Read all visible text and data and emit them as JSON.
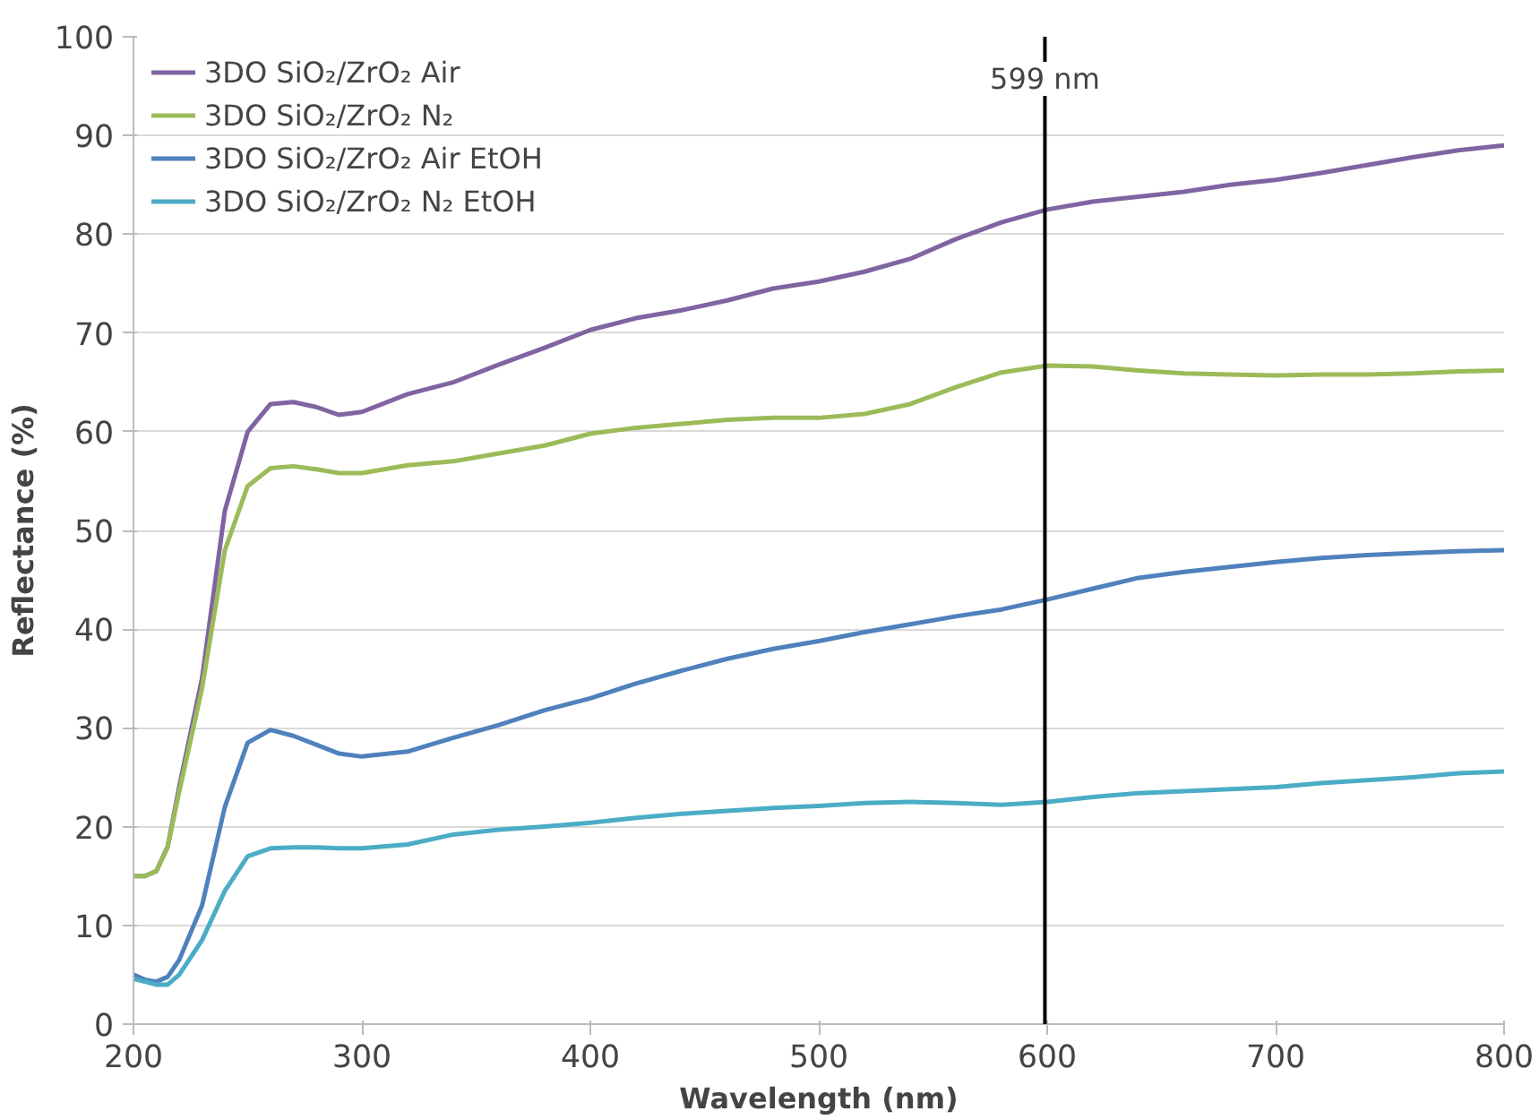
{
  "chart_data": {
    "type": "line",
    "xlabel": "Wavelength (nm)",
    "ylabel": "Reflectance (%)",
    "x": [
      200,
      205,
      210,
      215,
      220,
      230,
      240,
      250,
      260,
      270,
      280,
      290,
      300,
      320,
      340,
      360,
      380,
      400,
      420,
      440,
      460,
      480,
      500,
      520,
      540,
      560,
      580,
      600,
      620,
      640,
      660,
      680,
      700,
      720,
      740,
      760,
      780,
      800
    ],
    "series": [
      {
        "name": "3DO SiO₂/ZrO₂ Air",
        "color": "#8064a2",
        "values": [
          15,
          15,
          15.5,
          18,
          24,
          35,
          52,
          60,
          62.8,
          63,
          62.5,
          61.7,
          62,
          63.8,
          65,
          66.8,
          68.5,
          70.3,
          71.5,
          72.3,
          73.3,
          74.5,
          75.2,
          76.2,
          77.5,
          79.5,
          81.2,
          82.5,
          83.3,
          83.8,
          84.3,
          85,
          85.5,
          86.2,
          87,
          87.8,
          88.5,
          89
        ]
      },
      {
        "name": "3DO SiO₂/ZrO₂ N₂",
        "color": "#9bbb59",
        "values": [
          15,
          15,
          15.5,
          18,
          23.5,
          34,
          48,
          54.5,
          56.3,
          56.5,
          56.2,
          55.8,
          55.8,
          56.6,
          57,
          57.8,
          58.6,
          59.8,
          60.4,
          60.8,
          61.2,
          61.4,
          61.4,
          61.8,
          62.8,
          64.5,
          66,
          66.7,
          66.6,
          66.2,
          65.9,
          65.8,
          65.7,
          65.8,
          65.8,
          65.9,
          66.1,
          66.2
        ]
      },
      {
        "name": "3DO SiO₂/ZrO₂ Air EtOH",
        "color": "#4f81bd",
        "values": [
          5,
          4.5,
          4.3,
          4.8,
          6.5,
          12,
          22,
          28.5,
          29.8,
          29.2,
          28.3,
          27.4,
          27.1,
          27.6,
          29,
          30.3,
          31.8,
          33,
          34.5,
          35.8,
          37,
          38,
          38.8,
          39.7,
          40.5,
          41.3,
          42,
          43,
          44.1,
          45.2,
          45.8,
          46.3,
          46.8,
          47.2,
          47.5,
          47.7,
          47.9,
          48
        ]
      },
      {
        "name": "3DO SiO₂/ZrO₂ N₂ EtOH",
        "color": "#4bacc6",
        "values": [
          4.6,
          4.3,
          4,
          4,
          5,
          8.5,
          13.5,
          17,
          17.8,
          17.9,
          17.9,
          17.8,
          17.8,
          18.2,
          19.2,
          19.7,
          20,
          20.4,
          20.9,
          21.3,
          21.6,
          21.9,
          22.1,
          22.4,
          22.5,
          22.4,
          22.2,
          22.5,
          23,
          23.4,
          23.6,
          23.8,
          24,
          24.4,
          24.7,
          25,
          25.4,
          25.6
        ]
      }
    ],
    "xlim": [
      200,
      800
    ],
    "xticks": [
      200,
      300,
      400,
      500,
      600,
      700,
      800
    ],
    "ylim": [
      0,
      100
    ],
    "yticks": [
      0,
      10,
      20,
      30,
      40,
      50,
      60,
      70,
      80,
      90,
      100
    ],
    "grid": "y",
    "legend": "top left",
    "ref_lines": [
      {
        "axis": "x",
        "value": 599,
        "label": "599 nm",
        "color": "#000000"
      }
    ]
  }
}
